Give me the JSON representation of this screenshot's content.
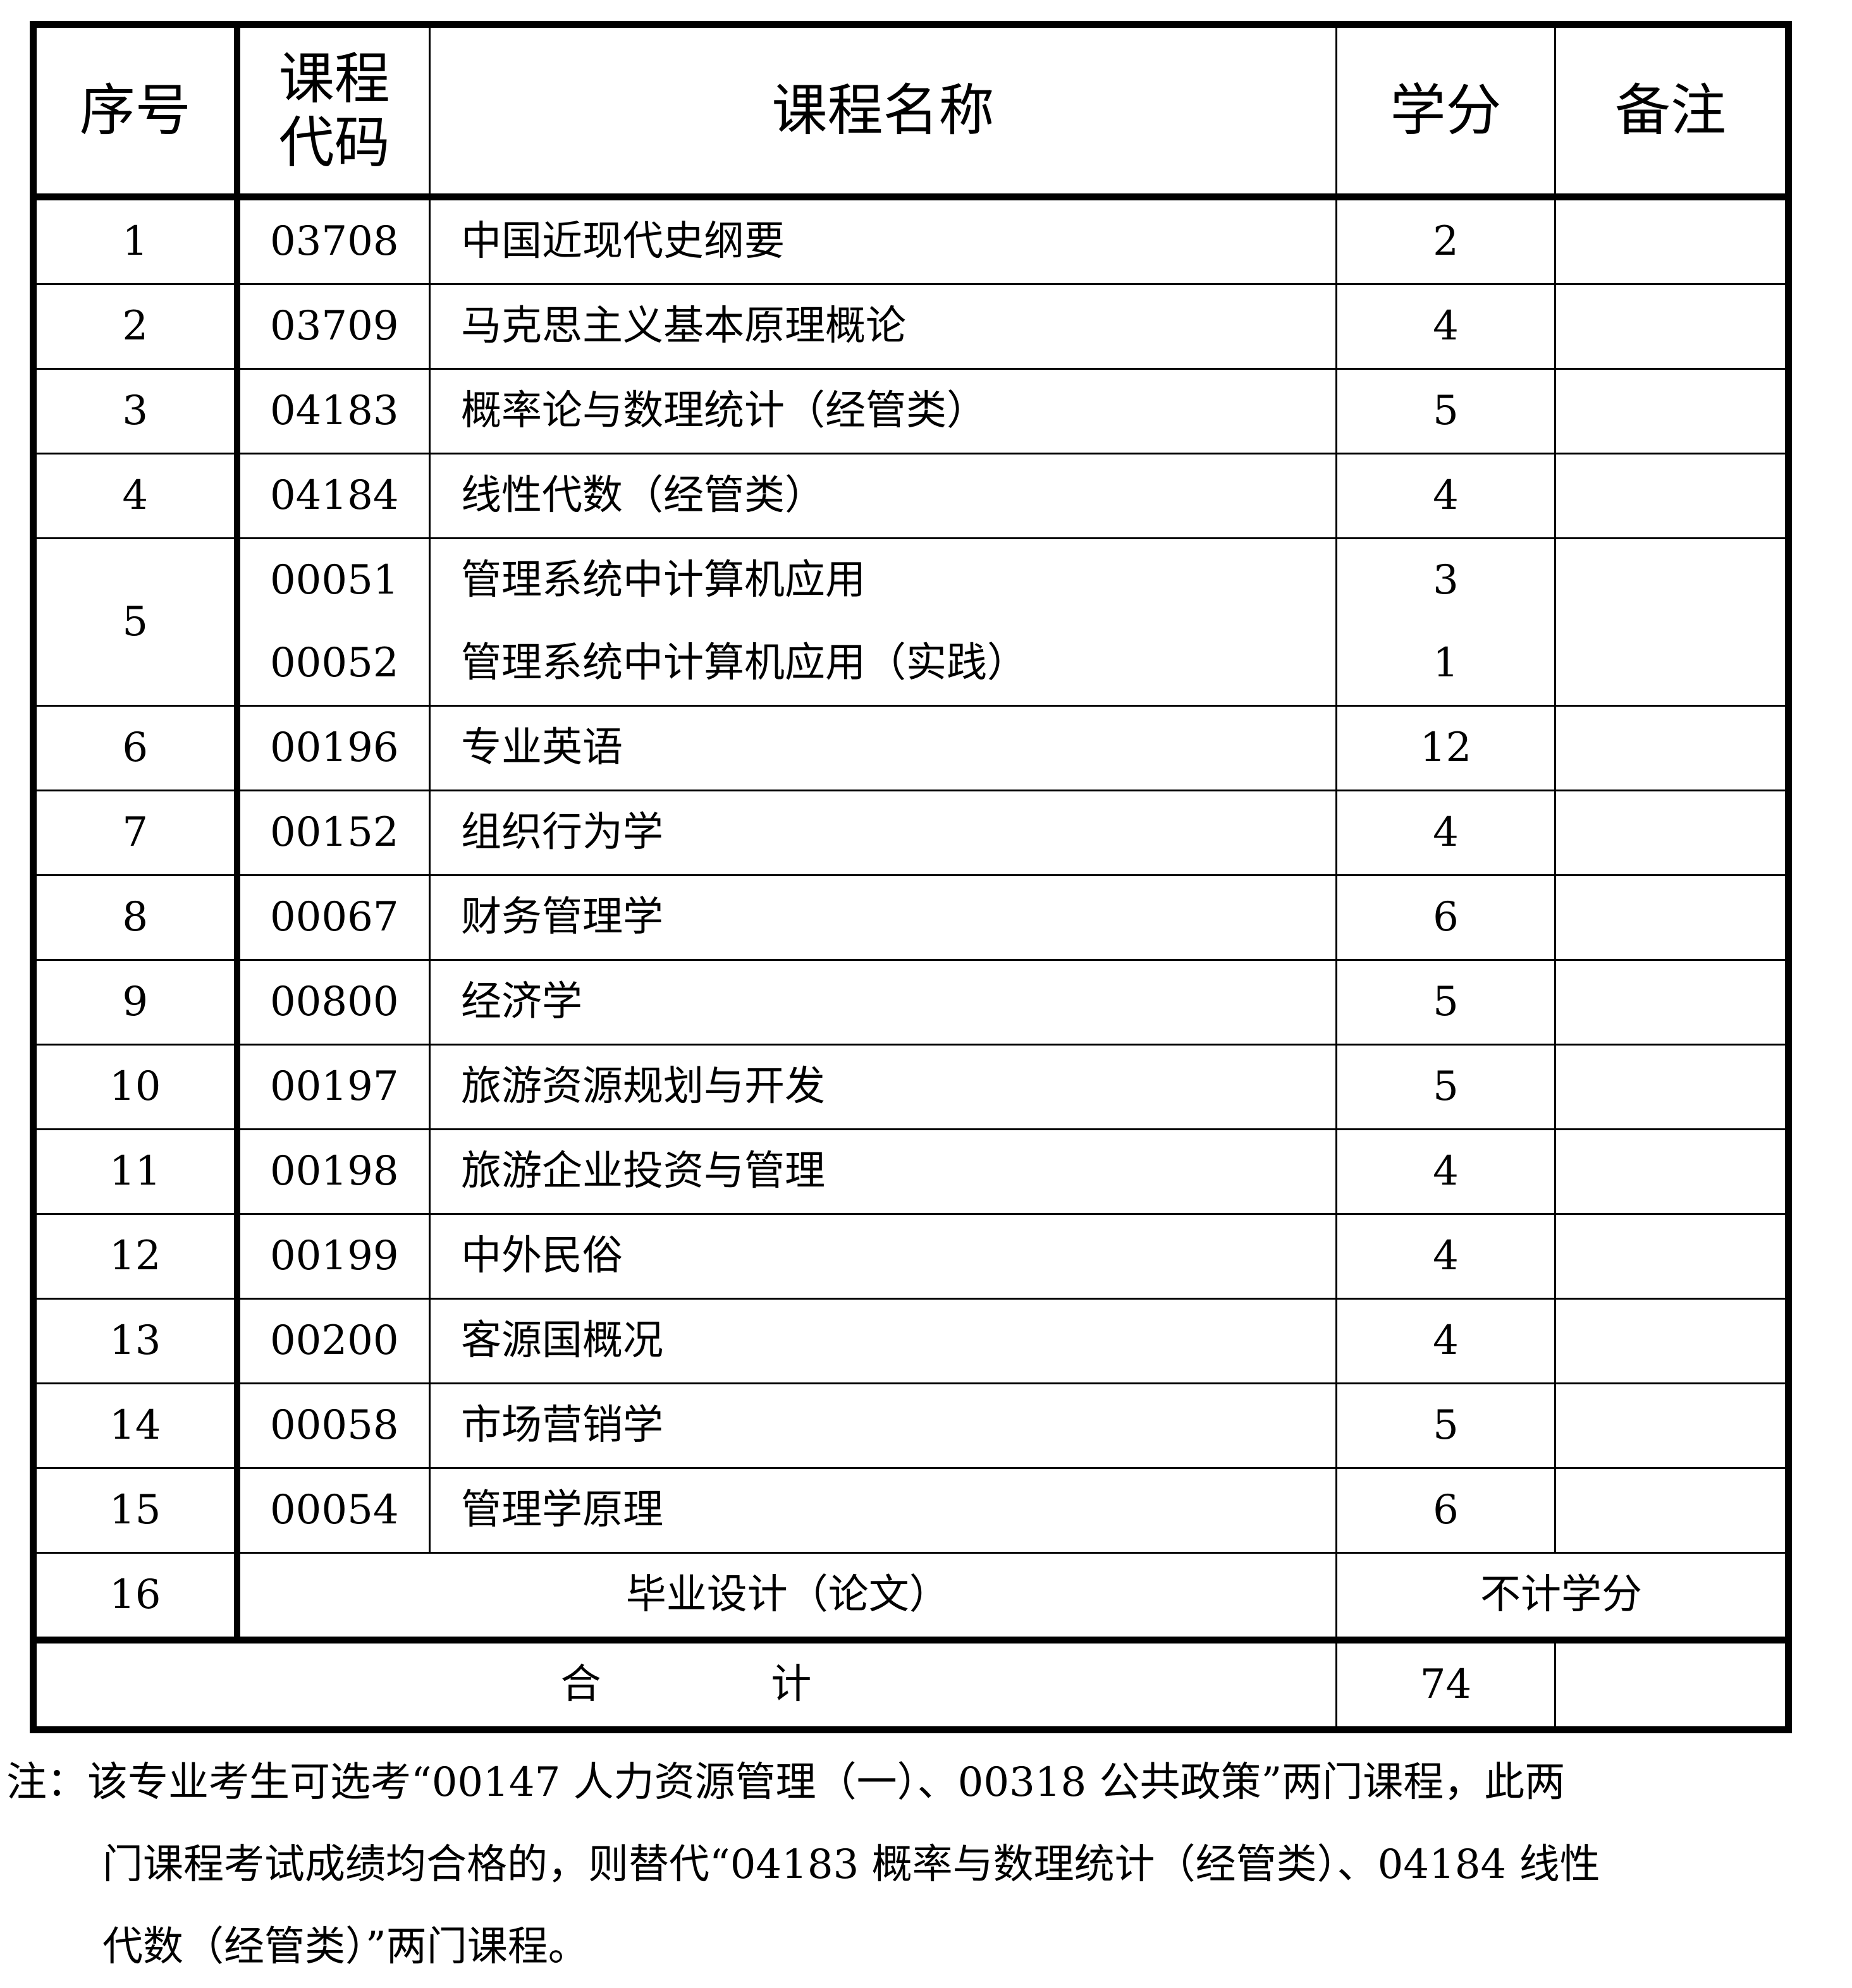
{
  "headers": {
    "seq": "序号",
    "code_line1": "课程",
    "code_line2": "代码",
    "name": "课程名称",
    "credit": "学分",
    "remark": "备注"
  },
  "rows": [
    {
      "seq": "1",
      "courses": [
        {
          "code": "03708",
          "name": "中国近现代史纲要",
          "credit": "2"
        }
      ]
    },
    {
      "seq": "2",
      "courses": [
        {
          "code": "03709",
          "name": "马克思主义基本原理概论",
          "credit": "4"
        }
      ]
    },
    {
      "seq": "3",
      "courses": [
        {
          "code": "04183",
          "name": "概率论与数理统计（经管类）",
          "credit": "5"
        }
      ]
    },
    {
      "seq": "4",
      "courses": [
        {
          "code": "04184",
          "name": "线性代数（经管类）",
          "credit": "4"
        }
      ]
    },
    {
      "seq": "5",
      "courses": [
        {
          "code": "00051",
          "name": "管理系统中计算机应用",
          "credit": "3"
        },
        {
          "code": "00052",
          "name": "管理系统中计算机应用（实践）",
          "credit": "1"
        }
      ]
    },
    {
      "seq": "6",
      "courses": [
        {
          "code": "00196",
          "name": "专业英语",
          "credit": "12"
        }
      ]
    },
    {
      "seq": "7",
      "courses": [
        {
          "code": "00152",
          "name": "组织行为学",
          "credit": "4"
        }
      ]
    },
    {
      "seq": "8",
      "courses": [
        {
          "code": "00067",
          "name": "财务管理学",
          "credit": "6"
        }
      ]
    },
    {
      "seq": "9",
      "courses": [
        {
          "code": "00800",
          "name": "经济学",
          "credit": "5"
        }
      ]
    },
    {
      "seq": "10",
      "courses": [
        {
          "code": "00197",
          "name": "旅游资源规划与开发",
          "credit": "5"
        }
      ]
    },
    {
      "seq": "11",
      "courses": [
        {
          "code": "00198",
          "name": "旅游企业投资与管理",
          "credit": "4"
        }
      ]
    },
    {
      "seq": "12",
      "courses": [
        {
          "code": "00199",
          "name": "中外民俗",
          "credit": "4"
        }
      ]
    },
    {
      "seq": "13",
      "courses": [
        {
          "code": "00200",
          "name": "客源国概况",
          "credit": "4"
        }
      ]
    },
    {
      "seq": "14",
      "courses": [
        {
          "code": "00058",
          "name": "市场营销学",
          "credit": "5"
        }
      ]
    },
    {
      "seq": "15",
      "courses": [
        {
          "code": "00054",
          "name": "管理学原理",
          "credit": "6"
        }
      ]
    }
  ],
  "thesis": {
    "seq": "16",
    "name": "毕业设计（论文）",
    "credit": "不计学分"
  },
  "total": {
    "label": "合计",
    "credit": "74"
  },
  "note": {
    "line1": "注：该专业考生可选考“00147 人力资源管理（一）、00318 公共政策”两门课程，此两",
    "line2": "门课程考试成绩均合格的，则替代“04183 概率与数理统计（经管类）、04184 线性",
    "line3": "代数（经管类）”两门课程。"
  }
}
